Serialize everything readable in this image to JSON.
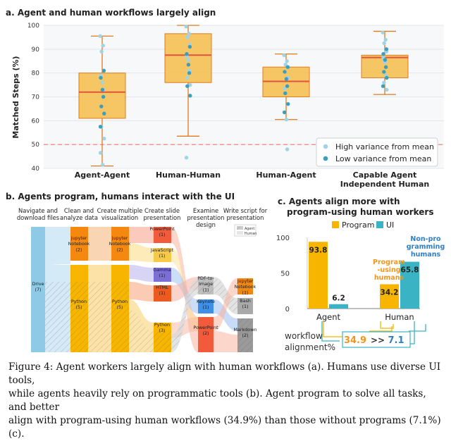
{
  "panel_a": {
    "title": "a.  Agent and human workflows largely align",
    "ylabel": "Matched Steps (%)",
    "yticks": [
      "100",
      "90",
      "80",
      "70",
      "60",
      "50",
      "40"
    ],
    "legend": [
      "High variance from mean",
      "Low variance from mean"
    ],
    "colors": {
      "box": "#f6bd4a",
      "median": "#e0533d",
      "whisker": "#e07b1e",
      "high": "#9fd3e6",
      "low": "#3a9fbf",
      "ref": "#ef7a6a"
    }
  },
  "panel_b": {
    "title": "b.  Agents program, humans interact with the UI",
    "legend": [
      "Agent",
      "Human"
    ]
  },
  "panel_c": {
    "title_line1": "c.  Agents align more with",
    "title_line2": "program-using human workers",
    "legend": [
      "Program",
      "UI"
    ],
    "yticks": [
      "100",
      "50",
      "0"
    ],
    "categories": [
      "Agent",
      "Human"
    ],
    "annot_prog": [
      "Program",
      "-using",
      "humans"
    ],
    "annot_ui": [
      "Non-pro",
      "gramming",
      "humans"
    ],
    "workflow": [
      "workflow",
      "alignment%"
    ],
    "cmp_left": "34.9",
    "cmp_op": ">>",
    "cmp_right": "7.1",
    "colors": {
      "program": "#f7b500",
      "ui": "#3ab4c4"
    }
  },
  "caption": {
    "line1": "Figure 4: Agent workers largely align with human workflows (a). Humans use diverse UI tools,",
    "line2": "while agents heavily rely on programmatic tools (b). Agent program to solve all tasks, and better",
    "line3": "align with program-using human workflows (34.9%) than those without programs (7.1%) (c)."
  },
  "chart_data": [
    {
      "type": "box",
      "title": "Agent and human workflows largely align",
      "ylabel": "Matched Steps (%)",
      "ylim": [
        40,
        100
      ],
      "reference_line": 50,
      "categories": [
        "Agent-Agent",
        "Human-Human",
        "Human-Agent",
        "Capable Agent Independent Human"
      ],
      "label_lines": [
        [
          "Agent-Agent"
        ],
        [
          "Human-Human"
        ],
        [
          "Human-Agent"
        ],
        [
          "Capable Agent",
          "Independent Human"
        ]
      ],
      "boxes": [
        {
          "min": 41,
          "q1": 61,
          "median": 72,
          "q3": 80,
          "max": 95.5
        },
        {
          "min": 53.5,
          "q1": 76,
          "median": 87.5,
          "q3": 96.5,
          "max": 100
        },
        {
          "min": 60.5,
          "q1": 70,
          "median": 76.5,
          "q3": 82.5,
          "max": 88
        },
        {
          "min": 71,
          "q1": 78,
          "median": 86.5,
          "q3": 87.5,
          "max": 97.5
        }
      ],
      "points_high": [
        [
          95.5,
          91.5,
          89,
          81,
          79,
          76,
          73,
          57.5,
          52.5,
          46.5,
          41.5
        ],
        [
          99.5,
          96.5,
          95,
          92,
          87,
          85.5,
          81,
          78,
          75,
          44.5
        ],
        [
          87.5,
          85,
          83.5,
          78,
          73.5,
          60.5,
          48
        ],
        [
          97,
          94,
          92.5,
          89,
          86.5,
          84.5,
          79,
          76,
          73
        ]
      ],
      "points_low": [
        [
          81,
          78,
          73,
          70,
          66,
          63,
          57.5
        ],
        [
          91,
          88,
          83.5,
          80,
          74.5,
          70.5
        ],
        [
          82.5,
          80.5,
          77.5,
          74.5,
          71.5,
          67,
          63.5
        ],
        [
          90,
          88,
          85.5,
          82.5,
          80.5,
          78,
          74.5
        ]
      ]
    },
    {
      "type": "sankey",
      "title": "Agents program, humans interact with the UI",
      "stages": [
        "Navigate and download files",
        "Clean and analyze data",
        "Create multiple visualization",
        "Create slide presentation",
        "Examine presentation design",
        "Write script for presentation"
      ],
      "stage_lines": [
        [
          "Navigate and",
          "download files"
        ],
        [
          "Clean and",
          "analyze data"
        ],
        [
          "Create multiple",
          "visualization"
        ],
        [
          "Create slide",
          "presentation"
        ],
        [
          "Examine",
          "presentation",
          "design"
        ],
        [
          "Write script for",
          "presentation"
        ]
      ],
      "nodes": [
        {
          "stage": 0,
          "label": [
            "Drive",
            "(7)"
          ],
          "color": "#8ecae6"
        },
        {
          "stage": 1,
          "label": [
            "Jupyter",
            "Notebook",
            "(2)"
          ],
          "color": "#f5890f"
        },
        {
          "stage": 1,
          "label": [
            "Python",
            "(5)"
          ],
          "color": "#f7b500"
        },
        {
          "stage": 2,
          "label": [
            "Jupyter",
            "Notebook",
            "(2)"
          ],
          "color": "#f5890f"
        },
        {
          "stage": 2,
          "label": [
            "Python",
            "(5)"
          ],
          "color": "#f7b500"
        },
        {
          "stage": 3,
          "label": [
            "PowerPoint",
            "(1)"
          ],
          "color": "#f15a3a"
        },
        {
          "stage": 3,
          "label": [
            "JavaScript",
            "(1)"
          ],
          "color": "#f7c948"
        },
        {
          "stage": 3,
          "label": [
            "Gamma",
            "(1)"
          ],
          "color": "#7b6fd6"
        },
        {
          "stage": 3,
          "label": [
            "HTML",
            "(1)"
          ],
          "color": "#f15a1f"
        },
        {
          "stage": 3,
          "label": [
            "Python",
            "(3)"
          ],
          "color": "#f7b500"
        },
        {
          "stage": 4,
          "label": [
            "PDF-to-",
            "Image",
            "(1)"
          ],
          "color": "#bfbfbf"
        },
        {
          "stage": 4,
          "label": [
            "Keynote",
            "(1)"
          ],
          "color": "#3d8fe8"
        },
        {
          "stage": 4,
          "label": [
            "PowerPoint",
            "(2)"
          ],
          "color": "#f15a3a"
        },
        {
          "stage": 5,
          "label": [
            "Jupyter",
            "Notebook",
            "(1)"
          ],
          "color": "#f5890f"
        },
        {
          "stage": 5,
          "label": [
            "Bash",
            "(1)"
          ],
          "color": "#a9a9a9"
        },
        {
          "stage": 5,
          "label": [
            "Markdown",
            "(2)"
          ],
          "color": "#9a9a9a"
        }
      ]
    },
    {
      "type": "bar",
      "title": "Agents align more with program-using human workers",
      "categories": [
        "Agent",
        "Human"
      ],
      "series": [
        {
          "name": "Program",
          "values": [
            93.8,
            34.2
          ]
        },
        {
          "name": "UI",
          "values": [
            6.2,
            65.8
          ]
        }
      ],
      "ylim": [
        0,
        100
      ],
      "annotation": "workflow alignment% 34.9 >> 7.1"
    }
  ]
}
